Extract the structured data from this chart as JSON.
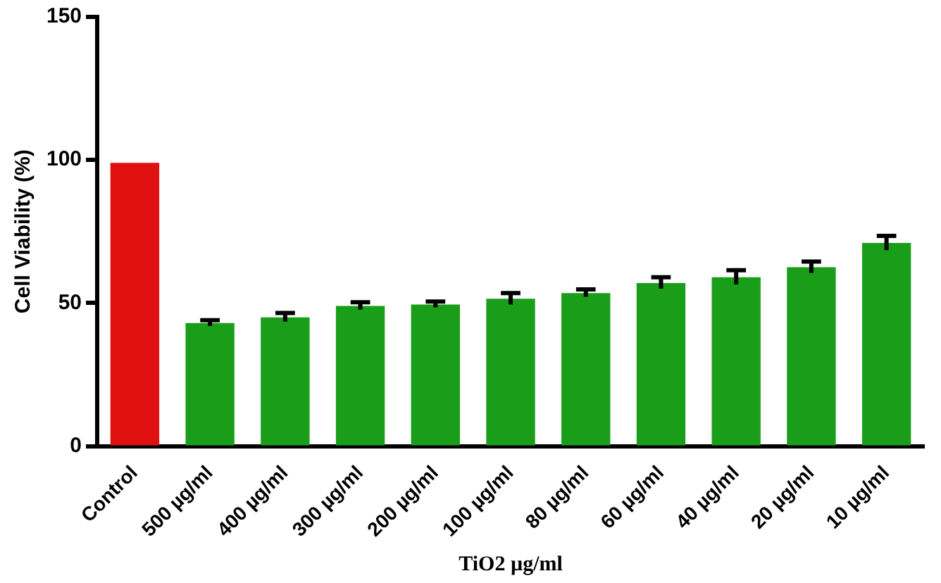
{
  "chart_data": {
    "type": "bar",
    "xlabel": "TiO2 µg/ml",
    "ylabel": "Cell Viability (%)",
    "categories": [
      "Control",
      "500 µg/ml",
      "400 µg/ml",
      "300 µg/ml",
      "200 µg/ml",
      "100 µg/ml",
      "80 µg/ml",
      "60 µg/ml",
      "40 µg/ml",
      "20 µg/ml",
      "10 µg/ml"
    ],
    "values": [
      99,
      43,
      45,
      49,
      49.5,
      51.5,
      53.5,
      57,
      59,
      62.5,
      71
    ],
    "errors": [
      null,
      1,
      1.5,
      1.3,
      1,
      2,
      1.3,
      2,
      2.5,
      2,
      2.5
    ],
    "colors": [
      "#e01010",
      "#1a9e1a",
      "#1a9e1a",
      "#1a9e1a",
      "#1a9e1a",
      "#1a9e1a",
      "#1a9e1a",
      "#1a9e1a",
      "#1a9e1a",
      "#1a9e1a",
      "#1a9e1a"
    ],
    "ylim": [
      0,
      150
    ],
    "yticks": [
      0,
      50,
      100,
      150
    ],
    "grid": false,
    "legend": false
  }
}
